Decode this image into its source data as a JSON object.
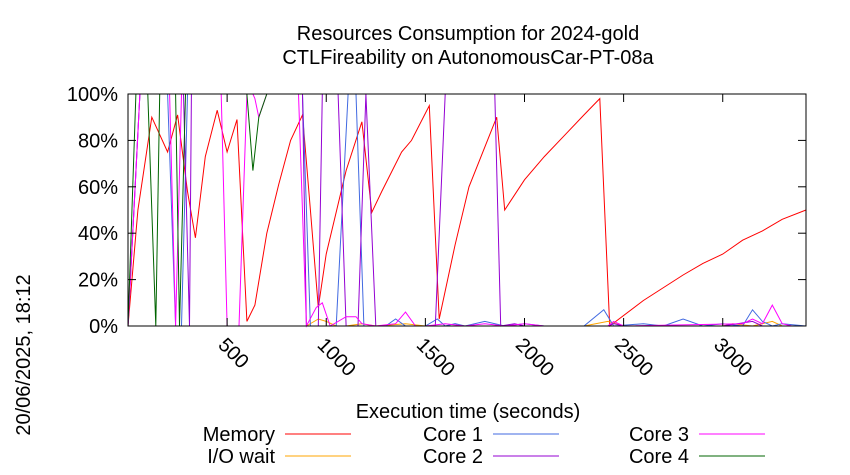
{
  "chart_data": {
    "type": "line",
    "title": "Resources Consumption for 2024-gold",
    "subtitle": "CTLFireability on AutonomousCar-PT-08a",
    "xlabel": "Execution time (seconds)",
    "ylabel": "",
    "side_label": "20/06/2025, 18:12",
    "xlim": [
      0,
      3420
    ],
    "ylim": [
      0,
      100
    ],
    "x_ticks": [
      500,
      1000,
      1500,
      2000,
      2500,
      3000
    ],
    "x_tick_labels": [
      "500",
      "1000",
      "1500",
      "2000",
      "2500",
      "3000"
    ],
    "y_ticks": [
      0,
      20,
      40,
      60,
      80,
      100
    ],
    "y_tick_labels": [
      "0%",
      "20%",
      "40%",
      "60%",
      "80%",
      "100%"
    ],
    "grid": false,
    "legend_position": "bottom",
    "series": [
      {
        "name": "Memory",
        "color": "#ff0000",
        "points": [
          [
            0,
            0
          ],
          [
            50,
            50
          ],
          [
            120,
            90
          ],
          [
            200,
            75
          ],
          [
            250,
            91
          ],
          [
            300,
            58
          ],
          [
            340,
            38
          ],
          [
            390,
            73
          ],
          [
            450,
            93
          ],
          [
            500,
            75
          ],
          [
            550,
            89
          ],
          [
            600,
            2
          ],
          [
            640,
            9
          ],
          [
            700,
            40
          ],
          [
            760,
            61
          ],
          [
            820,
            80
          ],
          [
            880,
            91
          ],
          [
            920,
            50
          ],
          [
            960,
            8
          ],
          [
            1000,
            31
          ],
          [
            1100,
            67
          ],
          [
            1180,
            88
          ],
          [
            1230,
            49
          ],
          [
            1280,
            58
          ],
          [
            1380,
            75
          ],
          [
            1430,
            80
          ],
          [
            1520,
            95
          ],
          [
            1570,
            3
          ],
          [
            1650,
            35
          ],
          [
            1720,
            60
          ],
          [
            1860,
            90
          ],
          [
            1900,
            50
          ],
          [
            2000,
            63
          ],
          [
            2100,
            73
          ],
          [
            2200,
            82
          ],
          [
            2300,
            91
          ],
          [
            2380,
            98
          ],
          [
            2430,
            0
          ],
          [
            2600,
            11
          ],
          [
            2800,
            22
          ],
          [
            2900,
            27
          ],
          [
            3000,
            31
          ],
          [
            3100,
            37
          ],
          [
            3200,
            41
          ],
          [
            3300,
            46
          ],
          [
            3420,
            50
          ]
        ]
      },
      {
        "name": "I/O wait",
        "color": "#ffa500",
        "points": [
          [
            0,
            0
          ],
          [
            500,
            0
          ],
          [
            900,
            0
          ],
          [
            960,
            3
          ],
          [
            1000,
            2
          ],
          [
            1050,
            0
          ],
          [
            1100,
            0
          ],
          [
            1180,
            1
          ],
          [
            1250,
            0
          ],
          [
            1400,
            1
          ],
          [
            1500,
            0
          ],
          [
            2300,
            0
          ],
          [
            2420,
            2
          ],
          [
            2500,
            0
          ],
          [
            3000,
            0
          ],
          [
            3050,
            1
          ],
          [
            3150,
            0
          ],
          [
            3250,
            2
          ],
          [
            3300,
            0
          ],
          [
            3420,
            0
          ]
        ]
      },
      {
        "name": "Core 1",
        "color": "#4169e1",
        "points": [
          [
            0,
            0
          ],
          [
            30,
            50
          ],
          [
            60,
            100
          ],
          [
            200,
            100
          ],
          [
            240,
            0
          ],
          [
            270,
            0
          ],
          [
            300,
            100
          ],
          [
            570,
            100
          ],
          [
            600,
            100
          ],
          [
            880,
            100
          ],
          [
            920,
            0
          ],
          [
            1050,
            0
          ],
          [
            1110,
            100
          ],
          [
            1150,
            100
          ],
          [
            1190,
            0
          ],
          [
            1300,
            0
          ],
          [
            1350,
            3
          ],
          [
            1400,
            0
          ],
          [
            1500,
            0
          ],
          [
            1560,
            3
          ],
          [
            1600,
            0
          ],
          [
            1650,
            1
          ],
          [
            1700,
            0
          ],
          [
            1800,
            2
          ],
          [
            1900,
            0
          ],
          [
            2000,
            1
          ],
          [
            2100,
            0
          ],
          [
            2300,
            0
          ],
          [
            2400,
            7
          ],
          [
            2450,
            0
          ],
          [
            2600,
            1
          ],
          [
            2700,
            0
          ],
          [
            2800,
            3
          ],
          [
            2900,
            0
          ],
          [
            3000,
            1
          ],
          [
            3100,
            0
          ],
          [
            3150,
            7
          ],
          [
            3200,
            2
          ],
          [
            3250,
            0
          ],
          [
            3300,
            1
          ],
          [
            3420,
            0
          ]
        ]
      },
      {
        "name": "Core 2",
        "color": "#9400d3",
        "points": [
          [
            0,
            0
          ],
          [
            60,
            100
          ],
          [
            280,
            100
          ],
          [
            310,
            0
          ],
          [
            320,
            100
          ],
          [
            600,
            100
          ],
          [
            880,
            100
          ],
          [
            900,
            0
          ],
          [
            960,
            0
          ],
          [
            980,
            100
          ],
          [
            1060,
            100
          ],
          [
            1100,
            0
          ],
          [
            1160,
            0
          ],
          [
            1200,
            100
          ],
          [
            1250,
            0
          ],
          [
            1550,
            0
          ],
          [
            1600,
            100
          ],
          [
            1850,
            100
          ],
          [
            1880,
            0
          ],
          [
            1950,
            1
          ],
          [
            2000,
            0
          ],
          [
            2420,
            0
          ],
          [
            2450,
            1
          ],
          [
            2500,
            0
          ],
          [
            3000,
            0
          ],
          [
            3150,
            2
          ],
          [
            3200,
            0
          ],
          [
            3420,
            0
          ]
        ]
      },
      {
        "name": "Core 3",
        "color": "#ff00ff",
        "points": [
          [
            0,
            0
          ],
          [
            60,
            100
          ],
          [
            210,
            100
          ],
          [
            240,
            0
          ],
          [
            270,
            100
          ],
          [
            410,
            100
          ],
          [
            470,
            100
          ],
          [
            500,
            0
          ],
          [
            560,
            0
          ],
          [
            600,
            100
          ],
          [
            630,
            100
          ],
          [
            640,
            98
          ],
          [
            660,
            90
          ],
          [
            700,
            100
          ],
          [
            860,
            100
          ],
          [
            900,
            0
          ],
          [
            950,
            8
          ],
          [
            980,
            10
          ],
          [
            1020,
            0
          ],
          [
            1100,
            4
          ],
          [
            1150,
            4
          ],
          [
            1180,
            1
          ],
          [
            1250,
            0
          ],
          [
            1350,
            1
          ],
          [
            1400,
            6
          ],
          [
            1450,
            0
          ],
          [
            1500,
            0
          ],
          [
            1600,
            1
          ],
          [
            1700,
            0
          ],
          [
            1800,
            1
          ],
          [
            1900,
            0
          ],
          [
            2000,
            1
          ],
          [
            2100,
            0
          ],
          [
            2420,
            0
          ],
          [
            2450,
            2
          ],
          [
            2500,
            0
          ],
          [
            3100,
            1
          ],
          [
            3150,
            3
          ],
          [
            3200,
            1
          ],
          [
            3250,
            9
          ],
          [
            3300,
            1
          ],
          [
            3350,
            0
          ],
          [
            3420,
            0
          ]
        ]
      },
      {
        "name": "Core 4",
        "color": "#006400",
        "points": [
          [
            0,
            0
          ],
          [
            40,
            100
          ],
          [
            100,
            100
          ],
          [
            140,
            0
          ],
          [
            160,
            100
          ],
          [
            240,
            100
          ],
          [
            260,
            0
          ],
          [
            290,
            100
          ],
          [
            560,
            100
          ],
          [
            600,
            100
          ],
          [
            630,
            67
          ],
          [
            660,
            90
          ],
          [
            700,
            100
          ],
          [
            3420,
            100
          ]
        ]
      }
    ]
  }
}
